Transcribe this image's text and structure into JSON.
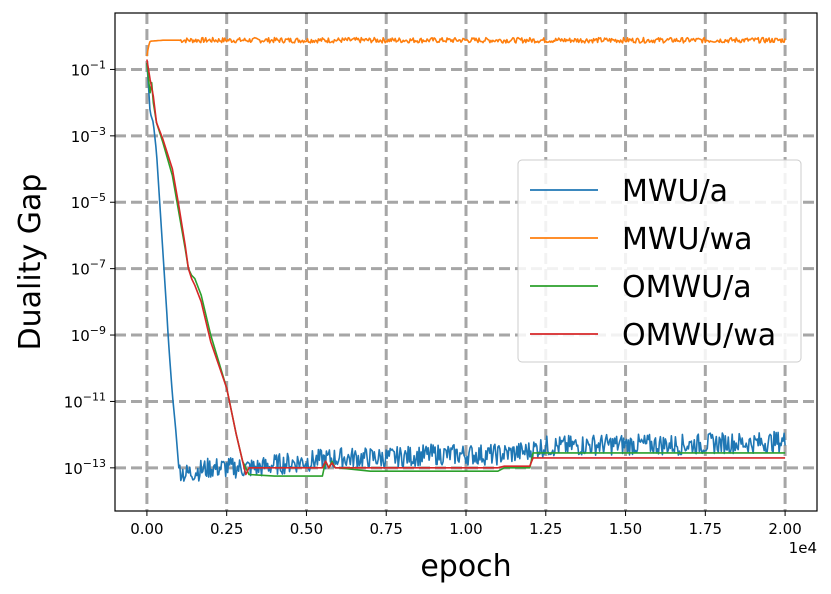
{
  "chart_data": {
    "type": "line",
    "xlabel": "epoch",
    "ylabel": "Duality Gap",
    "x_multiplier": "1e4",
    "x_ticks": [
      0.0,
      0.25,
      0.5,
      0.75,
      1.0,
      1.25,
      1.5,
      1.75,
      2.0
    ],
    "x_tick_labels": [
      "0.00",
      "0.25",
      "0.50",
      "0.75",
      "1.00",
      "1.25",
      "1.50",
      "1.75",
      "2.00"
    ],
    "xlim": [
      -0.1,
      2.1
    ],
    "y_scale": "log",
    "y_ticks_exp": [
      -1,
      -3,
      -5,
      -7,
      -9,
      -11,
      -13
    ],
    "ylim_exp": [
      -14.3,
      0.7
    ],
    "grid": true,
    "legend_position": "center-right",
    "series": [
      {
        "name": "MWU/a",
        "color": "#1f77b4",
        "x": [
          0.0,
          0.005,
          0.01,
          0.02,
          0.03,
          0.04,
          0.05,
          0.06,
          0.07,
          0.08,
          0.09,
          0.095,
          0.1,
          0.12,
          0.15,
          0.2,
          0.25,
          0.3,
          0.35,
          0.4,
          0.5,
          0.6,
          0.75,
          0.9,
          1.0,
          1.1,
          1.2,
          1.22,
          1.25,
          1.3,
          1.4,
          1.5,
          1.6,
          1.7,
          1.8,
          1.9,
          2.0
        ],
        "y_exp": [
          -0.8,
          -1.5,
          -2.3,
          -2.6,
          -3.5,
          -5.0,
          -6.5,
          -8.0,
          -9.5,
          -10.8,
          -11.8,
          -12.4,
          -13.0,
          -13.2,
          -13.1,
          -13.0,
          -13.0,
          -13.0,
          -13.0,
          -12.9,
          -12.8,
          -12.7,
          -12.7,
          -12.6,
          -12.6,
          -12.6,
          -12.5,
          -12.4,
          -12.35,
          -12.35,
          -12.3,
          -12.3,
          -12.3,
          -12.3,
          -12.25,
          -12.25,
          -12.2
        ]
      },
      {
        "name": "MWU/wa",
        "color": "#ff7f0e",
        "x": [
          0.0,
          0.005,
          0.01,
          0.05,
          0.25,
          0.5,
          0.75,
          1.0,
          1.25,
          1.5,
          1.75,
          2.0
        ],
        "y_exp": [
          -0.6,
          -0.3,
          -0.15,
          -0.12,
          -0.12,
          -0.12,
          -0.12,
          -0.12,
          -0.12,
          -0.12,
          -0.12,
          -0.12
        ]
      },
      {
        "name": "OMWU/a",
        "color": "#2ca02c",
        "x": [
          0.0,
          0.005,
          0.01,
          0.015,
          0.02,
          0.03,
          0.05,
          0.08,
          0.1,
          0.12,
          0.13,
          0.14,
          0.15,
          0.17,
          0.2,
          0.25,
          0.28,
          0.3,
          0.32,
          0.4,
          0.55,
          0.56,
          0.57,
          0.58,
          0.59,
          0.6,
          0.7,
          0.8,
          0.9,
          1.0,
          1.1,
          1.12,
          1.2,
          1.21,
          1.25,
          1.5,
          1.75,
          2.0
        ],
        "y_exp": [
          -0.8,
          -1.3,
          -1.7,
          -1.4,
          -2.0,
          -2.6,
          -3.2,
          -4.2,
          -5.3,
          -6.4,
          -7.0,
          -7.2,
          -7.3,
          -7.8,
          -9.0,
          -10.6,
          -12.0,
          -12.8,
          -13.2,
          -13.25,
          -13.25,
          -12.8,
          -13.0,
          -12.8,
          -13.0,
          -13.0,
          -13.1,
          -13.1,
          -13.1,
          -13.1,
          -13.1,
          -13.0,
          -13.0,
          -12.55,
          -12.55,
          -12.55,
          -12.55,
          -12.55
        ]
      },
      {
        "name": "OMWU/wa",
        "color": "#d62728",
        "x": [
          0.0,
          0.005,
          0.01,
          0.02,
          0.03,
          0.05,
          0.08,
          0.1,
          0.12,
          0.13,
          0.14,
          0.15,
          0.17,
          0.2,
          0.25,
          0.28,
          0.3,
          0.31,
          0.32,
          0.4,
          0.55,
          0.56,
          0.57,
          0.58,
          0.59,
          0.6,
          0.7,
          0.8,
          0.9,
          1.0,
          1.1,
          1.12,
          1.2,
          1.21,
          1.25,
          1.5,
          1.75,
          2.0
        ],
        "y_exp": [
          -0.7,
          -1.0,
          -1.3,
          -1.8,
          -2.6,
          -3.1,
          -4.0,
          -5.1,
          -6.3,
          -7.0,
          -7.3,
          -7.5,
          -8.0,
          -9.2,
          -10.6,
          -12.0,
          -12.8,
          -13.2,
          -13.0,
          -13.0,
          -13.0,
          -12.8,
          -13.0,
          -12.85,
          -13.0,
          -13.0,
          -13.0,
          -13.0,
          -13.0,
          -13.0,
          -13.0,
          -12.95,
          -12.95,
          -12.7,
          -12.7,
          -12.7,
          -12.7,
          -12.7
        ]
      }
    ]
  }
}
